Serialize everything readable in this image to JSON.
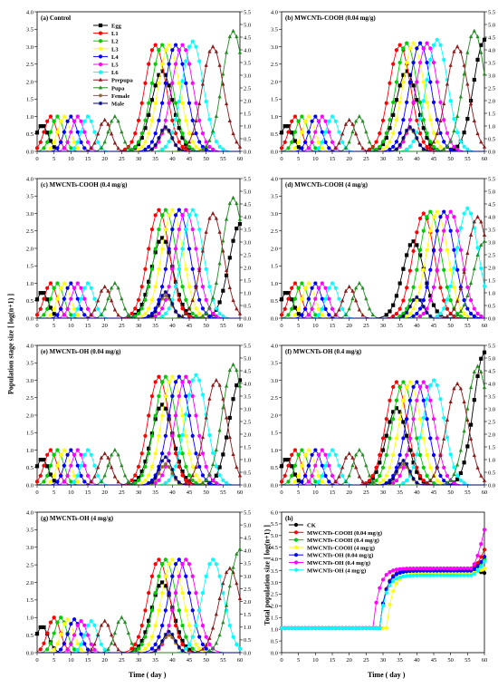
{
  "figure": {
    "y_title": "Population stage size [ log(n+1) ]",
    "x_title": "Time ( day )",
    "y2_title_h": "Total population size [ log(n+1) ]"
  },
  "stage_series": [
    {
      "name": "Egg",
      "color": "#000000",
      "marker": "square"
    },
    {
      "name": "L1",
      "color": "#ff0000",
      "marker": "circle"
    },
    {
      "name": "L2",
      "color": "#00cc00",
      "marker": "circle"
    },
    {
      "name": "L3",
      "color": "#ffff00",
      "marker": "circle"
    },
    {
      "name": "L4",
      "color": "#0000ff",
      "marker": "circle"
    },
    {
      "name": "L5",
      "color": "#ff00ff",
      "marker": "circle"
    },
    {
      "name": "L6",
      "color": "#00ffff",
      "marker": "circle"
    },
    {
      "name": "Prepupa",
      "color": "#8b1a1a",
      "marker": "triangle"
    },
    {
      "name": "Pupa",
      "color": "#228b22",
      "marker": "triangle"
    },
    {
      "name": "Female",
      "color": "#8b6914",
      "marker": "star"
    },
    {
      "name": "Male",
      "color": "#000080",
      "marker": "star"
    }
  ],
  "chart_data": [
    {
      "panel": "(a)",
      "title": "Control",
      "type": "line",
      "xlim": [
        0,
        60
      ],
      "ylim": [
        0,
        4.0
      ],
      "y2lim": [
        0,
        5.5
      ],
      "x_ticks": [
        "0",
        "5",
        "10",
        "15",
        "20",
        "25",
        "30",
        "35",
        "40",
        "45",
        "50",
        "55",
        "60"
      ],
      "y_ticks": [
        "0.0",
        "0.5",
        "1.0",
        "1.5",
        "2.0",
        "2.5",
        "3.0",
        "3.5",
        "4.0"
      ],
      "y2_ticks": [
        "0.0",
        "0.5",
        "1.0",
        "1.5",
        "2.0",
        "2.5",
        "3.0",
        "3.5",
        "4.0",
        "4.5",
        "5.0",
        "5.5"
      ],
      "legend": "top-center",
      "peaks": {
        "Egg": [
          [
            1.5,
            0.75
          ],
          [
            37,
            2.3
          ]
        ],
        "L1": [
          [
            4,
            1.0
          ],
          [
            35,
            3.05
          ]
        ],
        "L2": [
          [
            6,
            1.0
          ],
          [
            37,
            3.05
          ]
        ],
        "L3": [
          [
            8,
            1.0
          ],
          [
            39,
            3.05
          ]
        ],
        "L4": [
          [
            10,
            1.0
          ],
          [
            41,
            3.05
          ]
        ],
        "L5": [
          [
            12,
            1.0
          ],
          [
            43,
            3.05
          ]
        ],
        "L6": [
          [
            15,
            1.0
          ],
          [
            46,
            3.15
          ]
        ],
        "Prepupa": [
          [
            20,
            0.9
          ],
          [
            52,
            3.0
          ]
        ],
        "Pupa": [
          [
            23,
            1.0
          ],
          [
            58,
            3.45
          ]
        ],
        "Female": [
          [
            38,
            0.65
          ]
        ],
        "Male": [
          [
            38,
            0.7
          ]
        ]
      }
    },
    {
      "panel": "(b)",
      "title": "MWCNTs-COOH (0.04 mg/g)",
      "type": "line",
      "xlim": [
        0,
        60
      ],
      "ylim": [
        0,
        4.0
      ],
      "y2lim": [
        0,
        5.5
      ],
      "x_ticks": [
        "0",
        "5",
        "10",
        "15",
        "20",
        "25",
        "30",
        "35",
        "40",
        "45",
        "50",
        "55",
        "60"
      ],
      "y_ticks": [
        "0.0",
        "0.5",
        "1.0",
        "1.5",
        "2.0",
        "2.5",
        "3.0",
        "3.5",
        "4.0"
      ],
      "y2_ticks": [
        "0.0",
        "0.5",
        "1.0",
        "1.5",
        "2.0",
        "2.5",
        "3.0",
        "3.5",
        "4.0",
        "4.5",
        "5.0",
        "5.5"
      ],
      "peaks": {
        "Egg": [
          [
            1.5,
            0.75
          ],
          [
            37,
            2.3
          ],
          [
            60,
            3.2
          ]
        ],
        "L1": [
          [
            4,
            1.0
          ],
          [
            35,
            3.05
          ]
        ],
        "L2": [
          [
            6,
            1.0
          ],
          [
            37,
            3.1
          ]
        ],
        "L3": [
          [
            8,
            1.0
          ],
          [
            39,
            3.1
          ]
        ],
        "L4": [
          [
            10,
            1.0
          ],
          [
            41,
            3.1
          ]
        ],
        "L5": [
          [
            12,
            1.0
          ],
          [
            43,
            3.1
          ]
        ],
        "L6": [
          [
            15,
            1.0
          ],
          [
            46,
            3.2
          ]
        ],
        "Prepupa": [
          [
            20,
            0.9
          ],
          [
            52,
            3.0
          ]
        ],
        "Pupa": [
          [
            23,
            1.0
          ],
          [
            57,
            3.45
          ]
        ],
        "Female": [
          [
            38,
            0.65
          ]
        ],
        "Male": [
          [
            38,
            0.7
          ]
        ]
      }
    },
    {
      "panel": "(c)",
      "title": "MWCNTs-COOH (0.4 mg/g)",
      "type": "line",
      "xlim": [
        0,
        60
      ],
      "ylim": [
        0,
        4.0
      ],
      "y2lim": [
        0,
        5.5
      ],
      "x_ticks": [
        "0",
        "5",
        "10",
        "15",
        "20",
        "25",
        "30",
        "35",
        "40",
        "45",
        "50",
        "55",
        "60"
      ],
      "y_ticks": [
        "0.0",
        "0.5",
        "1.0",
        "1.5",
        "2.0",
        "2.5",
        "3.0",
        "3.5",
        "4.0"
      ],
      "y2_ticks": [
        "0.0",
        "0.5",
        "1.0",
        "1.5",
        "2.0",
        "2.5",
        "3.0",
        "3.5",
        "4.0",
        "4.5",
        "5.0",
        "5.5"
      ],
      "peaks": {
        "Egg": [
          [
            1.5,
            0.75
          ],
          [
            37,
            2.3
          ],
          [
            60,
            2.7
          ]
        ],
        "L1": [
          [
            4,
            1.0
          ],
          [
            36,
            3.1
          ]
        ],
        "L2": [
          [
            6,
            1.0
          ],
          [
            38,
            3.1
          ]
        ],
        "L3": [
          [
            8,
            1.0
          ],
          [
            40,
            3.1
          ]
        ],
        "L4": [
          [
            10,
            1.0
          ],
          [
            42,
            3.1
          ]
        ],
        "L5": [
          [
            12,
            1.0
          ],
          [
            44,
            3.1
          ]
        ],
        "L6": [
          [
            15,
            1.0
          ],
          [
            46,
            3.1
          ]
        ],
        "Prepupa": [
          [
            20,
            0.9
          ],
          [
            52,
            3.0
          ]
        ],
        "Pupa": [
          [
            23,
            1.0
          ],
          [
            58,
            3.45
          ]
        ],
        "Female": [
          [
            38,
            0.65
          ]
        ],
        "Male": [
          [
            38,
            0.75
          ]
        ]
      }
    },
    {
      "panel": "(d)",
      "title": "MWCNTs-COOH (4 mg/g)",
      "type": "line",
      "xlim": [
        0,
        60
      ],
      "ylim": [
        0,
        4.0
      ],
      "y2lim": [
        0,
        5.5
      ],
      "x_ticks": [
        "0",
        "5",
        "10",
        "15",
        "20",
        "25",
        "30",
        "35",
        "40",
        "45",
        "50",
        "55",
        "60"
      ],
      "y_ticks": [
        "0.0",
        "0.5",
        "1.0",
        "1.5",
        "2.0",
        "2.5",
        "3.0",
        "3.5",
        "4.0"
      ],
      "y2_ticks": [
        "0.0",
        "0.5",
        "1.0",
        "1.5",
        "2.0",
        "2.5",
        "3.0",
        "3.5",
        "4.0",
        "4.5",
        "5.0",
        "5.5"
      ],
      "peaks": {
        "Egg": [
          [
            1.5,
            0.75
          ],
          [
            39,
            2.2
          ]
        ],
        "L1": [
          [
            4,
            1.0
          ],
          [
            42,
            3.0
          ]
        ],
        "L2": [
          [
            6,
            1.0
          ],
          [
            44,
            3.05
          ]
        ],
        "L3": [
          [
            8,
            1.0
          ],
          [
            46,
            3.05
          ]
        ],
        "L4": [
          [
            10,
            1.0
          ],
          [
            48,
            3.05
          ]
        ],
        "L5": [
          [
            12,
            1.0
          ],
          [
            50,
            3.05
          ]
        ],
        "L6": [
          [
            15,
            1.0
          ],
          [
            55,
            3.15
          ]
        ],
        "Prepupa": [
          [
            20,
            0.9
          ],
          [
            58,
            2.9
          ]
        ],
        "Pupa": [
          [
            23,
            1.0
          ],
          [
            60,
            2.2
          ]
        ],
        "Female": [
          [
            40,
            0.6
          ]
        ],
        "Male": [
          [
            40,
            0.6
          ]
        ]
      }
    },
    {
      "panel": "(e)",
      "title": "MWCNTs-OH (0.04 mg/g)",
      "type": "line",
      "xlim": [
        0,
        60
      ],
      "ylim": [
        0,
        4.0
      ],
      "y2lim": [
        0,
        5.5
      ],
      "x_ticks": [
        "0",
        "5",
        "10",
        "15",
        "20",
        "25",
        "30",
        "35",
        "40",
        "45",
        "50",
        "55",
        "60"
      ],
      "y_ticks": [
        "0.0",
        "0.5",
        "1.0",
        "1.5",
        "2.0",
        "2.5",
        "3.0",
        "3.5",
        "4.0"
      ],
      "y2_ticks": [
        "0.0",
        "0.5",
        "1.0",
        "1.5",
        "2.0",
        "2.5",
        "3.0",
        "3.5",
        "4.0",
        "4.5",
        "5.0",
        "5.5"
      ],
      "peaks": {
        "Egg": [
          [
            1.5,
            0.75
          ],
          [
            37,
            2.3
          ],
          [
            60,
            3.0
          ]
        ],
        "L1": [
          [
            4,
            1.0
          ],
          [
            36,
            3.1
          ]
        ],
        "L2": [
          [
            6,
            1.0
          ],
          [
            38,
            3.1
          ]
        ],
        "L3": [
          [
            8,
            1.0
          ],
          [
            40,
            3.1
          ]
        ],
        "L4": [
          [
            10,
            1.0
          ],
          [
            42,
            3.1
          ]
        ],
        "L5": [
          [
            12,
            1.0
          ],
          [
            44,
            3.1
          ]
        ],
        "L6": [
          [
            15,
            1.0
          ],
          [
            47,
            3.15
          ]
        ],
        "Prepupa": [
          [
            20,
            0.9
          ],
          [
            53,
            3.0
          ]
        ],
        "Pupa": [
          [
            23,
            1.0
          ],
          [
            58,
            3.45
          ]
        ],
        "Female": [
          [
            38,
            0.6
          ]
        ],
        "Male": [
          [
            38,
            0.8
          ]
        ]
      }
    },
    {
      "panel": "(f)",
      "title": "MWCNTs-OH (0.4 mg/g)",
      "type": "line",
      "xlim": [
        0,
        60
      ],
      "ylim": [
        0,
        4.0
      ],
      "y2lim": [
        0,
        5.5
      ],
      "x_ticks": [
        "0",
        "5",
        "10",
        "15",
        "20",
        "25",
        "30",
        "35",
        "40",
        "45",
        "50",
        "55",
        "60"
      ],
      "y_ticks": [
        "0.0",
        "0.5",
        "1.0",
        "1.5",
        "2.0",
        "2.5",
        "3.0",
        "3.5",
        "4.0"
      ],
      "y2_ticks": [
        "0.0",
        "0.5",
        "1.0",
        "1.5",
        "2.0",
        "2.5",
        "3.0",
        "3.5",
        "4.0",
        "4.5",
        "5.0",
        "5.5"
      ],
      "peaks": {
        "Egg": [
          [
            1.5,
            0.75
          ],
          [
            34,
            2.2
          ],
          [
            60,
            3.8
          ]
        ],
        "L1": [
          [
            4,
            1.0
          ],
          [
            34,
            2.95
          ]
        ],
        "L2": [
          [
            6,
            1.0
          ],
          [
            36,
            2.95
          ]
        ],
        "L3": [
          [
            8,
            1.0
          ],
          [
            38,
            2.95
          ]
        ],
        "L4": [
          [
            10,
            1.0
          ],
          [
            40,
            2.95
          ]
        ],
        "L5": [
          [
            12,
            1.0
          ],
          [
            42,
            2.95
          ]
        ],
        "L6": [
          [
            15,
            1.0
          ],
          [
            45,
            3.0
          ]
        ],
        "Prepupa": [
          [
            20,
            0.9
          ],
          [
            52,
            2.9
          ]
        ],
        "Pupa": [
          [
            23,
            1.0
          ],
          [
            58,
            3.4
          ]
        ],
        "Female": [
          [
            36,
            0.6
          ]
        ],
        "Male": [
          [
            36,
            0.7
          ]
        ]
      }
    },
    {
      "panel": "(g)",
      "title": "MWCNTs-OH (4 mg/g)",
      "type": "line",
      "xlim": [
        0,
        60
      ],
      "ylim": [
        0,
        4.0
      ],
      "y2lim": [
        0,
        5.5
      ],
      "x_ticks": [
        "0",
        "5",
        "10",
        "15",
        "20",
        "25",
        "30",
        "35",
        "40",
        "45",
        "50",
        "55",
        "60"
      ],
      "y_ticks": [
        "0.0",
        "0.5",
        "1.0",
        "1.5",
        "2.0",
        "2.5",
        "3.0",
        "3.5",
        "4.0"
      ],
      "y2_ticks": [
        "0.0",
        "0.5",
        "1.0",
        "1.5",
        "2.0",
        "2.5",
        "3.0",
        "3.5",
        "4.0",
        "4.5",
        "5.0",
        "5.5"
      ],
      "peaks": {
        "Egg": [
          [
            1.5,
            0.75
          ],
          [
            37,
            2.0
          ]
        ],
        "L1": [
          [
            5,
            1.0
          ],
          [
            36,
            2.65
          ]
        ],
        "L2": [
          [
            7,
            1.0
          ],
          [
            38,
            2.65
          ]
        ],
        "L3": [
          [
            9,
            0.95
          ],
          [
            40,
            2.65
          ]
        ],
        "L4": [
          [
            11,
            0.95
          ],
          [
            42,
            2.65
          ]
        ],
        "L5": [
          [
            13,
            0.9
          ],
          [
            44,
            2.65
          ]
        ],
        "L6": [
          [
            16,
            0.9
          ],
          [
            52,
            2.65
          ]
        ],
        "Prepupa": [
          [
            20,
            0.9
          ],
          [
            57,
            2.4
          ]
        ],
        "Pupa": [
          [
            25,
            1.0
          ],
          [
            60,
            2.95
          ]
        ],
        "Female": [
          [
            39,
            0.5
          ]
        ],
        "Male": [
          [
            39,
            0.6
          ]
        ]
      }
    },
    {
      "panel": "(h)",
      "title": "",
      "type": "line",
      "xlim": [
        0,
        60
      ],
      "ylim": [
        0,
        6.0
      ],
      "x_ticks": [
        "0",
        "5",
        "10",
        "15",
        "20",
        "25",
        "30",
        "35",
        "40",
        "45",
        "50",
        "55",
        "60"
      ],
      "y_ticks": [
        "0.0",
        "0.5",
        "1.0",
        "1.5",
        "2.0",
        "2.5",
        "3.0",
        "3.5",
        "4.0",
        "4.5",
        "5.0",
        "5.5",
        "6.0"
      ],
      "legend": "top-left",
      "series": [
        {
          "name": "CK",
          "color": "#000000",
          "marker": "circle",
          "rise": 29,
          "plateau": 3.5,
          "end": 3.4
        },
        {
          "name": "MWCNTs-COOH (0.04 mg/g)",
          "color": "#ff0000",
          "marker": "circle",
          "rise": 29,
          "plateau": 3.55,
          "end": 4.4
        },
        {
          "name": "MWCNTs-COOH (0.4 mg/g)",
          "color": "#00cc00",
          "marker": "circle",
          "rise": 29,
          "plateau": 3.5,
          "end": 4.0
        },
        {
          "name": "MWCNTs-COOH (4 mg/g)",
          "color": "#ffff00",
          "marker": "circle",
          "rise": 31,
          "plateau": 3.4,
          "end": 3.6
        },
        {
          "name": "MWCNTs-OH (0.04 mg/g)",
          "color": "#0000ff",
          "marker": "circle",
          "rise": 29,
          "plateau": 3.5,
          "end": 4.1
        },
        {
          "name": "MWCNTs-OH (0.4 mg/g)",
          "color": "#ff00ff",
          "marker": "circle",
          "rise": 27,
          "plateau": 3.6,
          "end": 5.25
        },
        {
          "name": "MWCNTs-OH (4 mg/g)",
          "color": "#00ffff",
          "marker": "circle",
          "rise": 29,
          "plateau": 3.3,
          "end": 3.9
        }
      ]
    }
  ]
}
